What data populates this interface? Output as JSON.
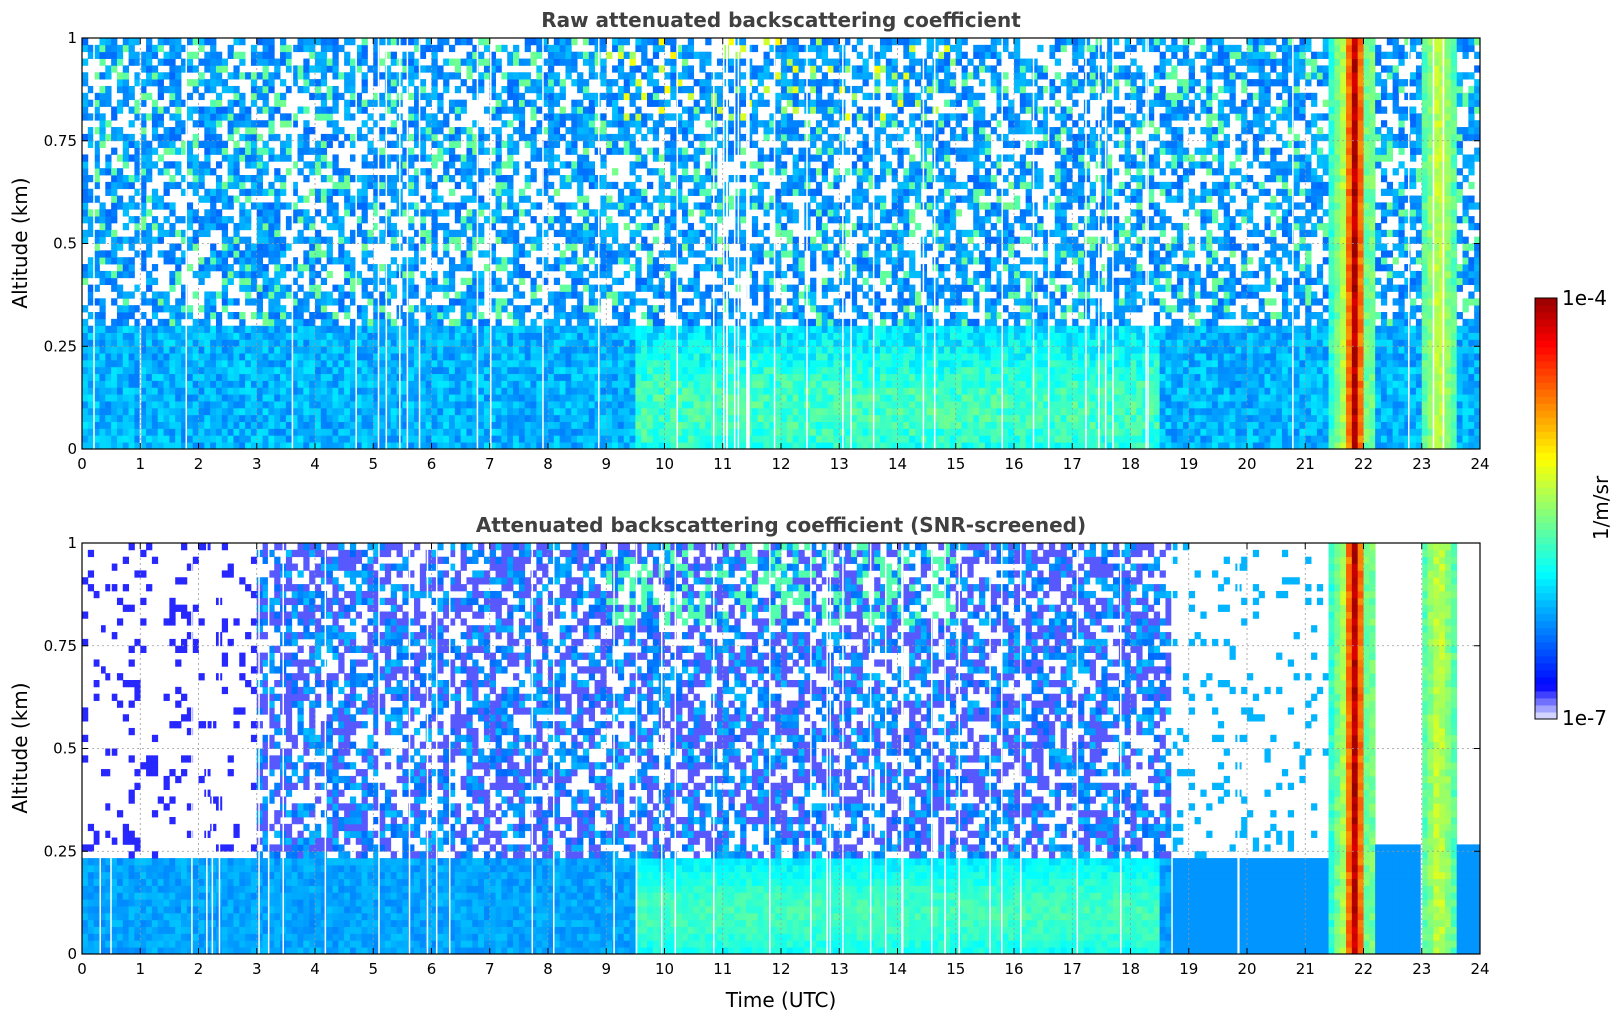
{
  "chart_data": [
    {
      "type": "heatmap",
      "title": "Raw attenuated backscattering coefficient",
      "xlabel": "",
      "ylabel": "Altitude (km)",
      "xlim": [
        0,
        24
      ],
      "ylim": [
        0,
        1
      ],
      "xticks": [
        "0",
        "1",
        "2",
        "3",
        "4",
        "5",
        "6",
        "7",
        "8",
        "9",
        "10",
        "11",
        "12",
        "13",
        "14",
        "15",
        "16",
        "17",
        "18",
        "19",
        "20",
        "21",
        "22",
        "23",
        "24"
      ],
      "yticks": [
        "0",
        "0.25",
        "0.5",
        "0.75",
        "1"
      ],
      "grid": true,
      "colorscale": "jet",
      "features": [
        {
          "x_range": [
            0,
            21.4
          ],
          "description_value": "noise",
          "level_log10": -6.2
        },
        {
          "x_range": [
            9.5,
            18.5
          ],
          "y_range": [
            0,
            0.3
          ],
          "level_log10": -6.0
        },
        {
          "x_range": [
            21.7,
            22.0
          ],
          "y_range": [
            0,
            1
          ],
          "level_log10": -4.3
        },
        {
          "x_range": [
            23.0,
            23.6
          ],
          "y_range": [
            0,
            1
          ],
          "level_log10": -5.3
        }
      ]
    },
    {
      "type": "heatmap",
      "title": "Attenuated backscattering coefficient (SNR-screened)",
      "xlabel": "Time (UTC)",
      "ylabel": "Altitude (km)",
      "xlim": [
        0,
        24
      ],
      "ylim": [
        0,
        1
      ],
      "xticks": [
        "0",
        "1",
        "2",
        "3",
        "4",
        "5",
        "6",
        "7",
        "8",
        "9",
        "10",
        "11",
        "12",
        "13",
        "14",
        "15",
        "16",
        "17",
        "18",
        "19",
        "20",
        "21",
        "22",
        "23",
        "24"
      ],
      "yticks": [
        "0",
        "0.25",
        "0.5",
        "0.75",
        "1"
      ],
      "grid": true,
      "colorscale": "jet"
    }
  ],
  "colorbar": {
    "max_label": "1e-4",
    "min_label": "1e-7",
    "unit_label": "1/m/sr",
    "colors": [
      "#ececff",
      "#9c9cff",
      "#4a4aff",
      "#0000ff",
      "#0040ff",
      "#0080ff",
      "#00bfff",
      "#00ffff",
      "#40ffbf",
      "#80ff80",
      "#bfff40",
      "#ffff00",
      "#ffbf00",
      "#ff8000",
      "#ff4000",
      "#ff0000",
      "#bf0000",
      "#800000"
    ]
  }
}
